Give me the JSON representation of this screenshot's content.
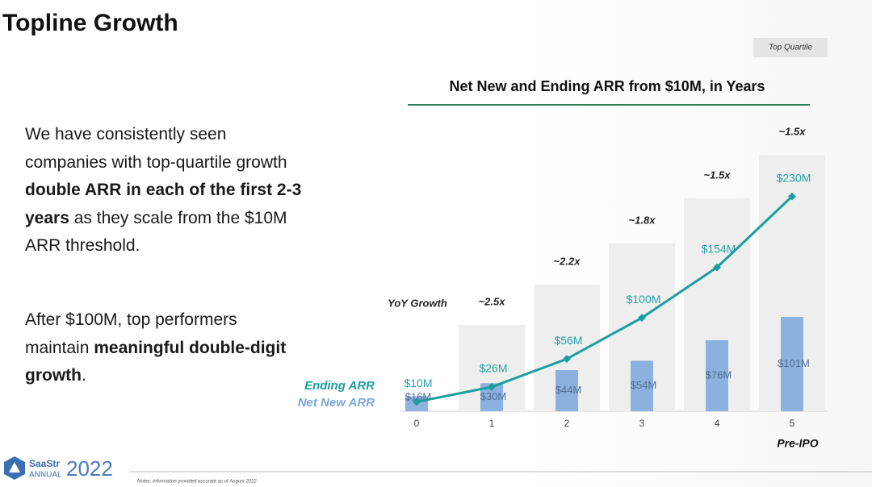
{
  "header": {
    "title": "Topline Growth",
    "tag": "Top Quartile"
  },
  "body": {
    "paragraphs": [
      [
        {
          "text": "We have consistently seen companies with top-quartile growth ",
          "bold": false
        },
        {
          "text": "double ARR in each of the first 2-3 years",
          "bold": true
        },
        {
          "text": " as they scale from the $10M ARR threshold.",
          "bold": false
        }
      ],
      [
        {
          "text": "After $100M, top performers maintain ",
          "bold": false
        },
        {
          "text": "meaningful double-digit growth",
          "bold": true
        },
        {
          "text": ".",
          "bold": false
        }
      ]
    ]
  },
  "chart_data": {
    "type": "bar",
    "title": "Net New and Ending ARR from $10M, in Years",
    "categories": [
      "0",
      "1",
      "2",
      "3",
      "4",
      "5"
    ],
    "category_note": "Pre-IPO",
    "ylim": [
      0,
      240
    ],
    "series": [
      {
        "name": "Ending ARR",
        "type": "line",
        "color": "#1a9ea0",
        "values": [
          10,
          26,
          56,
          100,
          154,
          230
        ],
        "value_labels": [
          "$10M",
          "$26M",
          "$56M",
          "$100M",
          "$154M",
          "$230M"
        ]
      },
      {
        "name": "Net New ARR",
        "type": "bar",
        "color": "#7aa6dc",
        "values": [
          16,
          30,
          44,
          54,
          76,
          101
        ],
        "value_labels": [
          "$16M",
          "$30M",
          "$44M",
          "$54M",
          "$76M",
          "$101M"
        ]
      }
    ],
    "growth": {
      "label": "YoY Growth",
      "values": [
        null,
        2.5,
        2.2,
        1.8,
        1.5,
        1.5
      ],
      "value_labels": [
        null,
        "~2.5x",
        "~2.2x",
        "~1.8x",
        "~1.5x",
        "~1.5x"
      ]
    }
  },
  "footer": {
    "brand": "SaaStr",
    "event": "ANNUAL",
    "year": "2022",
    "notes": "Notes: information provided accurate as of August 2022"
  }
}
